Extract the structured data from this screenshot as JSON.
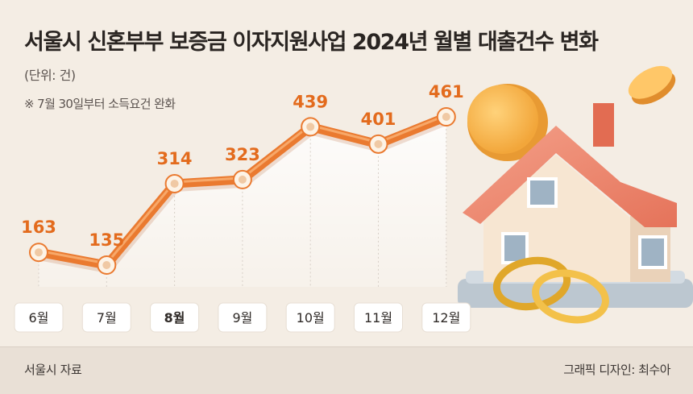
{
  "header": {
    "title": "서울시 신혼부부 보증금 이자지원사업 2024년 월별 대출건수 변화",
    "unit": "(단위: 건)",
    "note": "※ 7월 30일부터 소득요건 완화"
  },
  "footer": {
    "source": "서울시 자료",
    "credit": "그래픽 디자인: 최수아"
  },
  "colors": {
    "line": "#ea7a30",
    "label": "#e36b1d",
    "background": "#f4ede4"
  },
  "chart_data": {
    "type": "line",
    "categories": [
      "6월",
      "7월",
      "8월",
      "9월",
      "10월",
      "11월",
      "12월"
    ],
    "values": [
      163,
      135,
      314,
      323,
      439,
      401,
      461
    ],
    "highlight_category": "8월",
    "title": "서울시 신혼부부 보증금 이자지원사업 2024년 월별 대출건수 변화",
    "ylabel": "(단위: 건)",
    "xlabel": "",
    "ylim": [
      135,
      461
    ],
    "grid": false,
    "legend": "none"
  }
}
